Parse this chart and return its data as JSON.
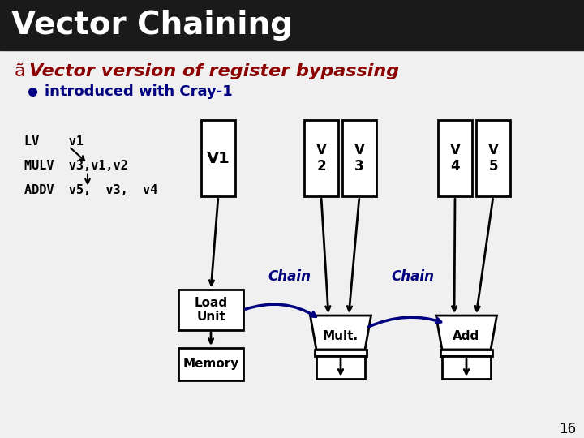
{
  "title": "Vector Chaining",
  "title_bg": "#1a1a1a",
  "title_color": "#ffffff",
  "bullet1": "Vector version of register bypassing",
  "bullet1_color": "#8b0000",
  "bullet2": "introduced with Cray-1",
  "bullet2_color": "#000080",
  "code_lines": [
    "LV    v1",
    "MULV  v3,v1,v2",
    "ADDV  v5,  v3,  v4"
  ],
  "code_color": "#000000",
  "chain_color": "#000080",
  "reg_labels": [
    "V1",
    "V\n2",
    "V\n3",
    "V\n4",
    "V\n5"
  ],
  "page_number": "16",
  "background_color": "#f0f0f0"
}
